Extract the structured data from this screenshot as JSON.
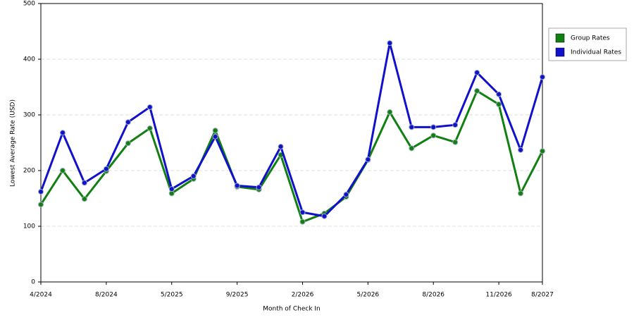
{
  "chart_data": {
    "type": "line",
    "x_label": "Month of Check In",
    "y_label": "Lowest Average Rate (USD)",
    "categories": [
      "4/2024",
      null,
      null,
      "8/2024",
      null,
      null,
      "5/2025",
      null,
      null,
      "9/2025",
      null,
      null,
      "2/2026",
      null,
      null,
      "5/2026",
      null,
      null,
      "8/2026",
      null,
      null,
      "11/2026",
      null,
      "8/2027"
    ],
    "series": [
      {
        "name": "Group Rates",
        "color": "#118011",
        "values": [
          139,
          200,
          149,
          199,
          249,
          276,
          159,
          185,
          272,
          171,
          166,
          228,
          108,
          123,
          153,
          219,
          305,
          240,
          263,
          251,
          343,
          319,
          159,
          235
        ]
      },
      {
        "name": "Individual Rates",
        "color": "#1111cc",
        "values": [
          162,
          268,
          178,
          203,
          287,
          314,
          167,
          190,
          261,
          173,
          170,
          243,
          125,
          118,
          157,
          220,
          429,
          278,
          278,
          282,
          376,
          337,
          237,
          368
        ]
      }
    ],
    "ylim": [
      0,
      500
    ],
    "yticks": [
      0,
      100,
      200,
      300,
      400,
      500
    ],
    "grid": true,
    "legend": "right"
  }
}
